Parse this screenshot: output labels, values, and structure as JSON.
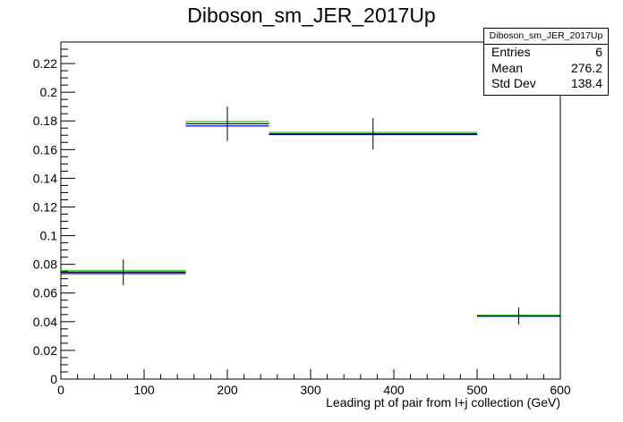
{
  "title": "Diboson_sm_JER_2017Up",
  "stats": {
    "name": "Diboson_sm_JER_2017Up",
    "rows": [
      {
        "label": "Entries",
        "value": "6"
      },
      {
        "label": "Mean",
        "value": "276.2"
      },
      {
        "label": "Std Dev",
        "value": "138.4"
      }
    ]
  },
  "chart_data": {
    "type": "histogram",
    "title": "Diboson_sm_JER_2017Up",
    "xlabel": "Leading pt of pair from l+j collection (GeV)",
    "ylabel": "",
    "xlim": [
      0,
      600
    ],
    "ylim": [
      0,
      0.235
    ],
    "x_ticks": [
      "0",
      "100",
      "200",
      "300",
      "400",
      "500",
      "600"
    ],
    "y_ticks": [
      "0",
      "0.02",
      "0.04",
      "0.06",
      "0.08",
      "0.1",
      "0.12",
      "0.14",
      "0.16",
      "0.18",
      "0.2",
      "0.22"
    ],
    "grid": false,
    "bins": [
      {
        "low": 0,
        "high": 150,
        "center": 75,
        "value": 0.0745,
        "error": 0.009
      },
      {
        "low": 150,
        "high": 250,
        "center": 200,
        "value": 0.178,
        "error": 0.012
      },
      {
        "low": 250,
        "high": 500,
        "center": 375,
        "value": 0.171,
        "error": 0.011
      },
      {
        "low": 500,
        "high": 600,
        "center": 550,
        "value": 0.044,
        "error": 0.006
      }
    ],
    "series": [
      {
        "name": "",
        "color": "#000000",
        "values": [
          0.0745,
          0.178,
          0.171,
          0.044
        ]
      },
      {
        "name": "",
        "color": "#00cc00",
        "values": [
          0.0755,
          0.1795,
          0.172,
          0.0445
        ]
      },
      {
        "name": "",
        "color": "#0000cc",
        "values": [
          0.0735,
          0.1765,
          0.1705,
          0.0438
        ]
      }
    ]
  }
}
